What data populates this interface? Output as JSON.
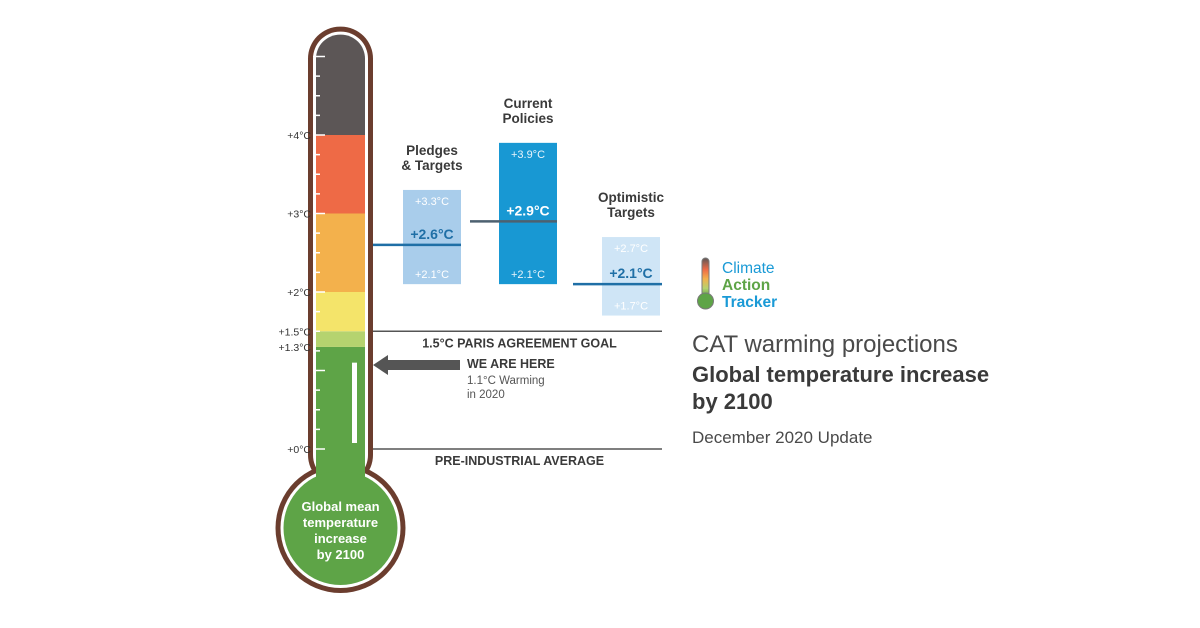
{
  "chart_data": {
    "type": "bar",
    "categories": [
      "Pledges & Targets",
      "Current Policies",
      "Optimistic Targets"
    ],
    "series": [
      {
        "low": 2.1,
        "high": 3.3,
        "value": 2.6,
        "low_label": "+2.1°C",
        "high_label": "+3.3°C",
        "value_label": "+2.6°C",
        "color": "#a9cdeb",
        "value_color": "#1f6fa6"
      },
      {
        "low": 2.1,
        "high": 3.9,
        "value": 2.9,
        "low_label": "+2.1°C",
        "high_label": "+3.9°C",
        "value_label": "+2.9°C",
        "color": "#1898d3",
        "value_color": "#ffffff"
      },
      {
        "low": 1.7,
        "high": 2.7,
        "value": 2.1,
        "low_label": "+1.7°C",
        "high_label": "+2.7°C",
        "value_label": "+2.1°C",
        "color": "#cfe5f6",
        "value_color": "#1f6fa6"
      }
    ],
    "category_labels": [
      [
        "Pledges",
        "& Targets"
      ],
      [
        "Current",
        "Policies"
      ],
      [
        "Optimistic",
        "Targets"
      ]
    ],
    "ylim": [
      0,
      5.1
    ],
    "scale": {
      "ticks": [
        {
          "value": 0,
          "label": "+0°C"
        },
        {
          "value": 1.3,
          "label": "+1.3°C"
        },
        {
          "value": 1.5,
          "label": "+1.5°C"
        },
        {
          "value": 2,
          "label": "+2°C"
        },
        {
          "value": 3,
          "label": "+3°C"
        },
        {
          "value": 4,
          "label": "+4°C"
        }
      ],
      "bands": [
        {
          "from": 0,
          "to": 1.3,
          "color": "#5ea447"
        },
        {
          "from": 1.3,
          "to": 1.5,
          "color": "#b5d36f"
        },
        {
          "from": 1.5,
          "to": 2,
          "color": "#f4e46a"
        },
        {
          "from": 2,
          "to": 3,
          "color": "#f3b14c"
        },
        {
          "from": 3,
          "to": 4,
          "color": "#ee6a46"
        },
        {
          "from": 4,
          "to": 5.1,
          "color": "#5c5656"
        }
      ]
    },
    "current_level": 1.1,
    "reference_lines": [
      {
        "value": 1.5,
        "label": "1.5°C PARIS AGREEMENT GOAL"
      },
      {
        "value": 0,
        "label": "PRE-INDUSTRIAL AVERAGE"
      }
    ],
    "annotation": {
      "title": "WE ARE HERE",
      "lines": [
        "1.1°C Warming",
        "in 2020"
      ]
    },
    "bulb_lines": [
      "Global mean",
      "temperature",
      "increase",
      "by 2100"
    ]
  },
  "side": {
    "subtitle": "CAT warming projections",
    "title": "Global temperature increase by 2100",
    "update": "December 2020 Update"
  },
  "logo": {
    "lines": [
      "Climate",
      "Action",
      "Tracker"
    ],
    "colors": [
      "#1a9ad6",
      "#5ea447",
      "#1a9ad6"
    ]
  },
  "colors": {
    "outline": "#6b3d2e",
    "tick_text": "#333333",
    "ref_line": "#555555",
    "arrow": "#555555"
  }
}
